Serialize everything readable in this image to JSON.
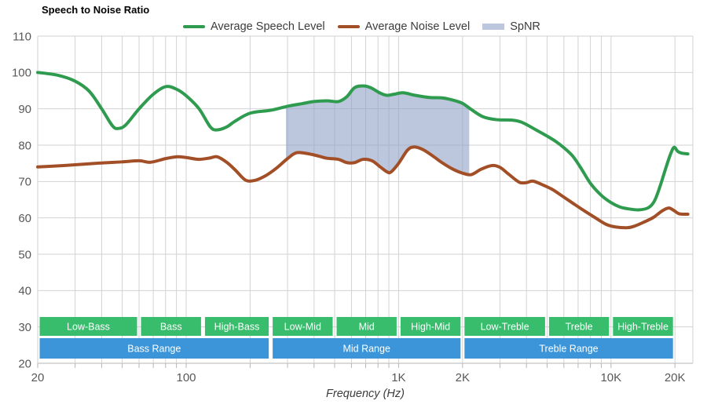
{
  "title": "Speech to Noise Ratio",
  "xlabel": "Frequency (Hz)",
  "legend": {
    "speech_label": "Average Speech Level",
    "noise_label": "Average Noise Level",
    "spnr_label": "SpNR"
  },
  "colors": {
    "speech_line": "#2e9b4f",
    "noise_line": "#a24f27",
    "spnr_fill": "rgba(143,160,197,0.6)",
    "spnr_swatch": "#bcc7de",
    "band_green": "#38bd6c",
    "band_blue": "#3b95d8",
    "grid": "#d2d2d2",
    "axis": "#b5b5b5",
    "tick_label": "#58585a",
    "band_text": "#ffffff"
  },
  "chart_data": {
    "type": "line",
    "title": "Speech to Noise Ratio",
    "xlabel": "Frequency (Hz)",
    "x_scale": "log",
    "x_range": [
      20,
      24300
    ],
    "y_range": [
      20,
      110
    ],
    "grid": true,
    "legend_position": "top",
    "x_ticks": [
      {
        "hz": 20,
        "label": "20"
      },
      {
        "hz": 100,
        "label": "100"
      },
      {
        "hz": 1000,
        "label": "1K"
      },
      {
        "hz": 2000,
        "label": "2K"
      },
      {
        "hz": 10000,
        "label": "10K"
      },
      {
        "hz": 20000,
        "label": "20K"
      }
    ],
    "y_ticks": [
      110,
      100,
      90,
      80,
      70,
      60,
      50,
      40,
      30,
      20
    ],
    "series": [
      {
        "name": "Average Speech Level",
        "color": "#2e9b4f",
        "points": [
          [
            20,
            100
          ],
          [
            25,
            99.2
          ],
          [
            30,
            97.6
          ],
          [
            35,
            94.8
          ],
          [
            40,
            90
          ],
          [
            45,
            85.3
          ],
          [
            48,
            84.6
          ],
          [
            52,
            85.6
          ],
          [
            60,
            90
          ],
          [
            70,
            94
          ],
          [
            80,
            96.1
          ],
          [
            90,
            95.4
          ],
          [
            100,
            93.6
          ],
          [
            115,
            90
          ],
          [
            130,
            85
          ],
          [
            140,
            84.2
          ],
          [
            155,
            85
          ],
          [
            170,
            86.6
          ],
          [
            200,
            88.8
          ],
          [
            250,
            89.6
          ],
          [
            300,
            90.7
          ],
          [
            350,
            91.4
          ],
          [
            400,
            92
          ],
          [
            460,
            92.2
          ],
          [
            520,
            92
          ],
          [
            570,
            93.3
          ],
          [
            620,
            95.8
          ],
          [
            680,
            96.3
          ],
          [
            740,
            95.8
          ],
          [
            820,
            94.3
          ],
          [
            880,
            93.7
          ],
          [
            950,
            94
          ],
          [
            1050,
            94.4
          ],
          [
            1200,
            93.7
          ],
          [
            1400,
            93.1
          ],
          [
            1600,
            93
          ],
          [
            1800,
            92.4
          ],
          [
            2000,
            91.5
          ],
          [
            2200,
            89.8
          ],
          [
            2500,
            87.8
          ],
          [
            2900,
            87
          ],
          [
            3400,
            86.9
          ],
          [
            3800,
            86.3
          ],
          [
            4500,
            84
          ],
          [
            5000,
            82.5
          ],
          [
            5500,
            81
          ],
          [
            6000,
            79.3
          ],
          [
            6600,
            77
          ],
          [
            7200,
            73.8
          ],
          [
            8000,
            69.5
          ],
          [
            9000,
            66.2
          ],
          [
            10000,
            64.2
          ],
          [
            11000,
            63
          ],
          [
            12000,
            62.5
          ],
          [
            13500,
            62.2
          ],
          [
            15000,
            62.8
          ],
          [
            16000,
            64.6
          ],
          [
            17000,
            68.6
          ],
          [
            18000,
            73.2
          ],
          [
            19000,
            77.3
          ],
          [
            19800,
            79.4
          ],
          [
            20600,
            78.3
          ],
          [
            21500,
            77.8
          ],
          [
            23000,
            77.6
          ]
        ]
      },
      {
        "name": "Average Noise Level",
        "color": "#a24f27",
        "points": [
          [
            20,
            74
          ],
          [
            25,
            74.3
          ],
          [
            30,
            74.6
          ],
          [
            40,
            75.1
          ],
          [
            50,
            75.4
          ],
          [
            60,
            75.7
          ],
          [
            68,
            75.3
          ],
          [
            80,
            76.3
          ],
          [
            90,
            76.8
          ],
          [
            100,
            76.6
          ],
          [
            115,
            76.1
          ],
          [
            130,
            76.5
          ],
          [
            140,
            76.8
          ],
          [
            155,
            75.3
          ],
          [
            170,
            73.2
          ],
          [
            190,
            70.4
          ],
          [
            210,
            70.3
          ],
          [
            235,
            71.5
          ],
          [
            265,
            73.6
          ],
          [
            300,
            76.3
          ],
          [
            330,
            77.9
          ],
          [
            370,
            77.7
          ],
          [
            420,
            77
          ],
          [
            460,
            76.4
          ],
          [
            520,
            76.1
          ],
          [
            570,
            75.2
          ],
          [
            620,
            75.2
          ],
          [
            680,
            76.1
          ],
          [
            750,
            75.7
          ],
          [
            820,
            74
          ],
          [
            880,
            72.7
          ],
          [
            920,
            72.6
          ],
          [
            1000,
            75
          ],
          [
            1100,
            78.6
          ],
          [
            1180,
            79.5
          ],
          [
            1300,
            78.8
          ],
          [
            1450,
            77
          ],
          [
            1600,
            75.2
          ],
          [
            1800,
            73.4
          ],
          [
            2000,
            72.3
          ],
          [
            2200,
            71.9
          ],
          [
            2450,
            73.4
          ],
          [
            2750,
            74.4
          ],
          [
            3000,
            73.9
          ],
          [
            3300,
            72
          ],
          [
            3700,
            69.8
          ],
          [
            4000,
            69.7
          ],
          [
            4300,
            70.1
          ],
          [
            4800,
            69
          ],
          [
            5300,
            67.8
          ],
          [
            6000,
            65.7
          ],
          [
            6700,
            63.8
          ],
          [
            7500,
            61.9
          ],
          [
            8500,
            59.9
          ],
          [
            9500,
            58.2
          ],
          [
            10500,
            57.5
          ],
          [
            12000,
            57.3
          ],
          [
            13000,
            57.8
          ],
          [
            14000,
            58.6
          ],
          [
            15000,
            59.4
          ],
          [
            16000,
            60.3
          ],
          [
            17000,
            61.5
          ],
          [
            18000,
            62.4
          ],
          [
            18800,
            62.7
          ],
          [
            19800,
            62
          ],
          [
            21000,
            61.1
          ],
          [
            23000,
            61
          ]
        ]
      }
    ],
    "spnr_band": {
      "label": "SpNR",
      "from_hz": 295,
      "to_hz": 2150,
      "between": [
        "Average Speech Level",
        "Average Noise Level"
      ],
      "color": "rgba(143,160,197,0.6)"
    },
    "frequency_bands": {
      "fine": [
        {
          "label": "Low-Bass",
          "from_hz": 20,
          "to_hz": 60
        },
        {
          "label": "Bass",
          "from_hz": 60,
          "to_hz": 120
        },
        {
          "label": "High-Bass",
          "from_hz": 120,
          "to_hz": 250
        },
        {
          "label": "Low-Mid",
          "from_hz": 250,
          "to_hz": 500
        },
        {
          "label": "Mid",
          "from_hz": 500,
          "to_hz": 1000
        },
        {
          "label": "High-Mid",
          "from_hz": 1000,
          "to_hz": 2000
        },
        {
          "label": "Low-Treble",
          "from_hz": 2000,
          "to_hz": 5000
        },
        {
          "label": "Treble",
          "from_hz": 5000,
          "to_hz": 10000
        },
        {
          "label": "High-Treble",
          "from_hz": 10000,
          "to_hz": 20000
        }
      ],
      "coarse": [
        {
          "label": "Bass Range",
          "from_hz": 20,
          "to_hz": 250
        },
        {
          "label": "Mid Range",
          "from_hz": 250,
          "to_hz": 2000
        },
        {
          "label": "Treble Range",
          "from_hz": 2000,
          "to_hz": 20000
        }
      ]
    }
  }
}
